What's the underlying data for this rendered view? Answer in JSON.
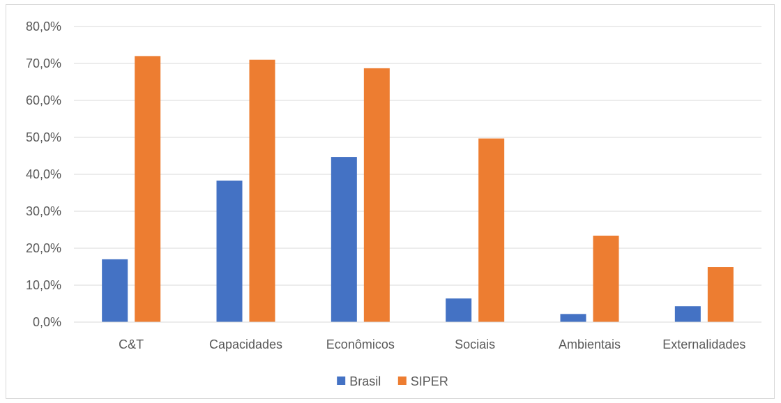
{
  "chart_data": {
    "type": "bar",
    "title": "",
    "xlabel": "",
    "ylabel": "",
    "categories": [
      "C&T",
      "Capacidades",
      "Econômicos",
      "Sociais",
      "Ambientais",
      "Externalidades"
    ],
    "series": [
      {
        "name": "Brasil",
        "color": "#4472c4",
        "values": [
          17.0,
          38.3,
          44.7,
          6.4,
          2.2,
          4.3
        ]
      },
      {
        "name": "SIPER",
        "color": "#ed7d31",
        "values": [
          72.0,
          71.0,
          68.7,
          49.7,
          23.4,
          14.9
        ]
      }
    ],
    "ylim": [
      0,
      80
    ],
    "yticks": [
      0,
      10,
      20,
      30,
      40,
      50,
      60,
      70,
      80
    ],
    "ytick_labels": [
      "0,0%",
      "10,0%",
      "20,0%",
      "30,0%",
      "40,0%",
      "50,0%",
      "60,0%",
      "70,0%",
      "80,0%"
    ],
    "grid": true,
    "grid_color": "#d9d9d9",
    "legend_position": "bottom"
  }
}
